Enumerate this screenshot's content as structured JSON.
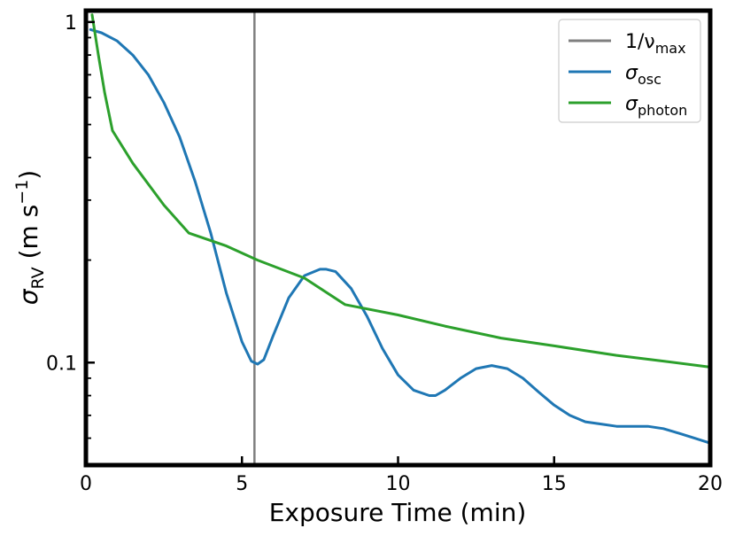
{
  "chart_data": {
    "type": "line",
    "xlabel": "Exposure Time (min)",
    "ylabel": {
      "symbol": "σ",
      "sub": "RV",
      "unit_pre": " (m s",
      "unit_sup": "−1",
      "unit_post": ")"
    },
    "xlim": [
      0,
      20
    ],
    "ylim": [
      0.05,
      1.08
    ],
    "yscale": "log",
    "grid": false,
    "legend_position": "top-right",
    "x_ticks": [
      0,
      5,
      10,
      15,
      20
    ],
    "x_tick_labels": [
      "0",
      "5",
      "10",
      "15",
      "20"
    ],
    "y_major_ticks": [
      0.1,
      1
    ],
    "y_tick_labels": [
      "0.1",
      "1"
    ],
    "y_minor_ticks": [
      0.06,
      0.07,
      0.08,
      0.09,
      0.2,
      0.3,
      0.4,
      0.5,
      0.6,
      0.7,
      0.8,
      0.9
    ],
    "vline": {
      "x": 5.4,
      "color": "#7f7f7f"
    },
    "series": [
      {
        "key": "vline",
        "label": {
          "main": "1/ν",
          "sub": "max"
        },
        "color": "#7f7f7f"
      },
      {
        "key": "osc",
        "label": {
          "main": "σ",
          "sub": "osc"
        },
        "color": "#1f77b4",
        "x": [
          0.15,
          0.5,
          1.0,
          1.5,
          2.0,
          2.5,
          3.0,
          3.5,
          4.0,
          4.5,
          5.0,
          5.3,
          5.5,
          5.7,
          6.0,
          6.5,
          7.0,
          7.5,
          7.7,
          8.0,
          8.5,
          9.0,
          9.5,
          10.0,
          10.5,
          11.0,
          11.2,
          11.5,
          12.0,
          12.5,
          13.0,
          13.5,
          14.0,
          14.5,
          15.0,
          15.5,
          16.0,
          16.5,
          17.0,
          17.5,
          18.0,
          18.5,
          19.0,
          19.5,
          20.0
        ],
        "y": [
          0.95,
          0.93,
          0.88,
          0.8,
          0.7,
          0.58,
          0.46,
          0.34,
          0.24,
          0.16,
          0.115,
          0.101,
          0.099,
          0.102,
          0.12,
          0.155,
          0.18,
          0.188,
          0.188,
          0.185,
          0.165,
          0.137,
          0.11,
          0.092,
          0.083,
          0.08,
          0.08,
          0.083,
          0.09,
          0.096,
          0.098,
          0.096,
          0.09,
          0.082,
          0.075,
          0.07,
          0.067,
          0.066,
          0.065,
          0.065,
          0.065,
          0.064,
          0.062,
          0.06,
          0.058
        ]
      },
      {
        "key": "photon",
        "label": {
          "main": "σ",
          "sub": "photon"
        },
        "color": "#2ca02c",
        "x": [
          0.2,
          0.4,
          0.6,
          0.85,
          1.5,
          2.5,
          3.3,
          4.5,
          5.5,
          7.0,
          8.3,
          10.0,
          11.5,
          13.3,
          15.0,
          17.0,
          18.5,
          20.0
        ],
        "y": [
          1.05,
          0.8,
          0.62,
          0.48,
          0.385,
          0.29,
          0.24,
          0.22,
          0.2,
          0.177,
          0.148,
          0.138,
          0.128,
          0.118,
          0.112,
          0.105,
          0.101,
          0.097
        ]
      }
    ]
  }
}
